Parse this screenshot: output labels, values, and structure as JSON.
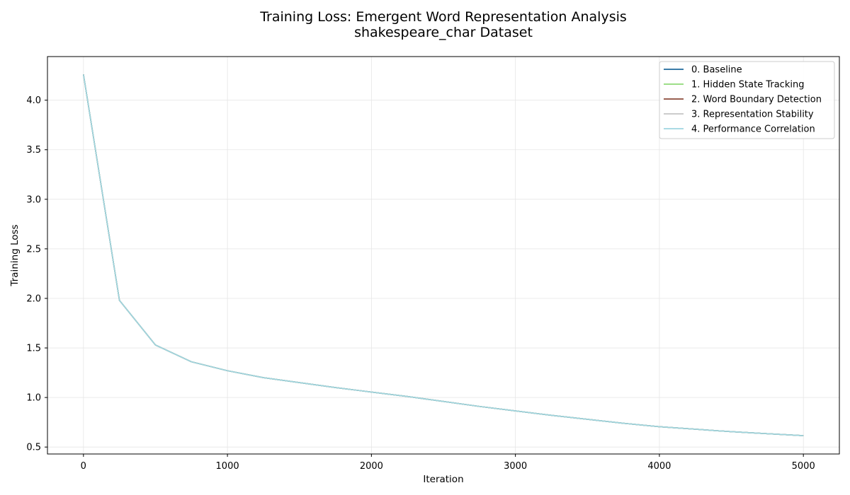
{
  "chart_data": {
    "type": "line",
    "title": "Training Loss: Emergent Word Representation Analysis",
    "subtitle": "shakespeare_char Dataset",
    "xlabel": "Iteration",
    "ylabel": "Training Loss",
    "xlim": [
      -250,
      5250
    ],
    "ylim": [
      0.43,
      4.44
    ],
    "xticks": [
      0,
      1000,
      2000,
      3000,
      4000,
      5000
    ],
    "yticks": [
      0.5,
      1.0,
      1.5,
      2.0,
      2.5,
      3.0,
      3.5,
      4.0
    ],
    "ytick_labels": [
      "0.5",
      "1.0",
      "1.5",
      "2.0",
      "2.5",
      "3.0",
      "3.5",
      "4.0"
    ],
    "grid": true,
    "legend_position": "top-right",
    "x": [
      0,
      250,
      500,
      750,
      1000,
      1250,
      1500,
      1750,
      2000,
      2250,
      2500,
      2750,
      3000,
      3250,
      3500,
      3750,
      4000,
      4250,
      4500,
      4750,
      5000
    ],
    "series": [
      {
        "name": "0. Baseline",
        "color": "#1f6a9c",
        "values": [
          4.26,
          1.98,
          1.53,
          1.36,
          1.27,
          1.2,
          1.15,
          1.1,
          1.055,
          1.01,
          0.96,
          0.91,
          0.865,
          0.82,
          0.78,
          0.74,
          0.705,
          0.68,
          0.655,
          0.635,
          0.615
        ]
      },
      {
        "name": "1. Hidden State Tracking",
        "color": "#8fd977",
        "values": [
          4.26,
          1.98,
          1.53,
          1.36,
          1.27,
          1.2,
          1.15,
          1.1,
          1.055,
          1.01,
          0.96,
          0.91,
          0.865,
          0.82,
          0.78,
          0.74,
          0.705,
          0.68,
          0.655,
          0.635,
          0.615
        ]
      },
      {
        "name": "2. Word Boundary Detection",
        "color": "#8c4a3a",
        "values": [
          4.26,
          1.98,
          1.53,
          1.36,
          1.27,
          1.2,
          1.15,
          1.1,
          1.055,
          1.01,
          0.96,
          0.91,
          0.865,
          0.82,
          0.78,
          0.74,
          0.705,
          0.68,
          0.655,
          0.635,
          0.615
        ]
      },
      {
        "name": "3. Representation Stability",
        "color": "#c5c5c5",
        "values": [
          4.26,
          1.98,
          1.53,
          1.36,
          1.27,
          1.2,
          1.15,
          1.1,
          1.055,
          1.01,
          0.96,
          0.91,
          0.865,
          0.82,
          0.78,
          0.74,
          0.705,
          0.68,
          0.655,
          0.635,
          0.615
        ]
      },
      {
        "name": "4. Performance Correlation",
        "color": "#9ed6e0",
        "values": [
          4.26,
          1.98,
          1.53,
          1.36,
          1.27,
          1.2,
          1.15,
          1.1,
          1.055,
          1.01,
          0.96,
          0.91,
          0.865,
          0.82,
          0.78,
          0.74,
          0.705,
          0.68,
          0.655,
          0.635,
          0.615
        ]
      }
    ]
  }
}
